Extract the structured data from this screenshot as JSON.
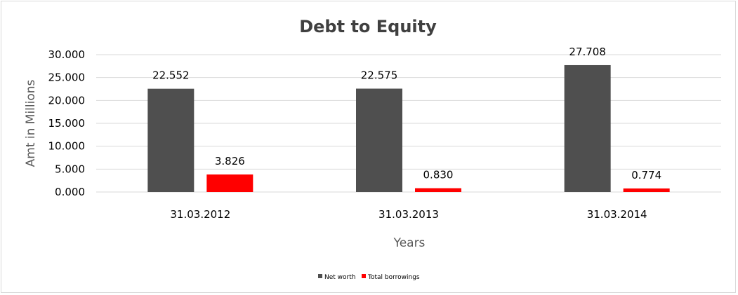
{
  "chart_data": {
    "type": "bar",
    "title": "Debt to Equity",
    "xlabel": "Years",
    "ylabel": "Amt in Millions",
    "categories": [
      "31.03.2012",
      "31.03.2013",
      "31.03.2014"
    ],
    "series": [
      {
        "name": "Net worth",
        "values": [
          22.552,
          22.575,
          27.708
        ],
        "labels": [
          "22.552",
          "22.575",
          "27.708"
        ],
        "color": "#4f4f4f"
      },
      {
        "name": "Total borrowings",
        "values": [
          3.826,
          0.83,
          0.774
        ],
        "labels": [
          "3.826",
          "0.830",
          "0.774"
        ],
        "color": "#ff0000"
      }
    ],
    "ylim": [
      0,
      30
    ],
    "yticks": [
      "0.000",
      "5.000",
      "10.000",
      "15.000",
      "20.000",
      "25.000",
      "30.000"
    ],
    "grid": true,
    "legend": "bottom"
  }
}
